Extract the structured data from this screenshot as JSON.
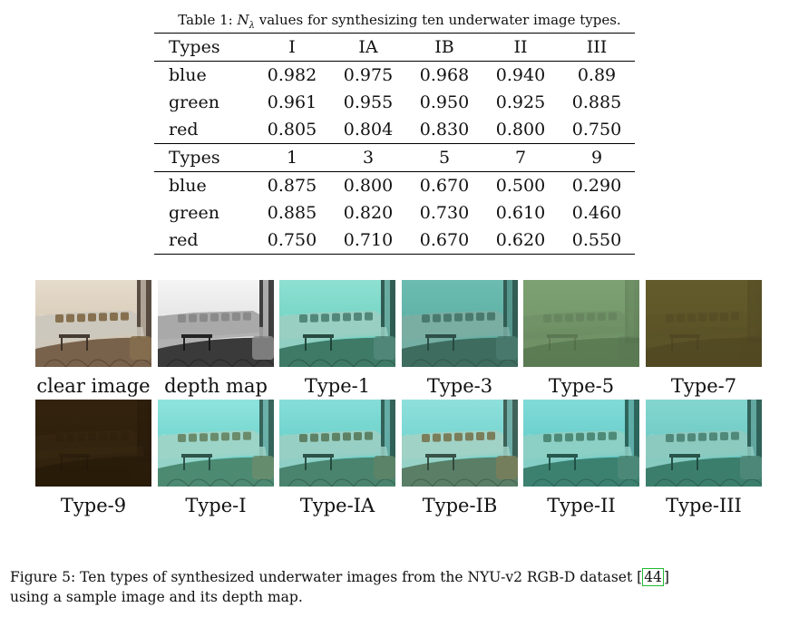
{
  "table": {
    "caption_prefix": "Table 1:",
    "caption_symbol": "N",
    "caption_subscript": "λ",
    "caption_rest": "values for synthesizing ten underwater image types.",
    "groups": [
      {
        "header": [
          "Types",
          "I",
          "IA",
          "IB",
          "II",
          "III"
        ],
        "rows": [
          [
            "blue",
            "0.982",
            "0.975",
            "0.968",
            "0.940",
            "0.89"
          ],
          [
            "green",
            "0.961",
            "0.955",
            "0.950",
            "0.925",
            "0.885"
          ],
          [
            "red",
            "0.805",
            "0.804",
            "0.830",
            "0.800",
            "0.750"
          ]
        ]
      },
      {
        "header": [
          "Types",
          "1",
          "3",
          "5",
          "7",
          "9"
        ],
        "rows": [
          [
            "blue",
            "0.875",
            "0.800",
            "0.670",
            "0.500",
            "0.290"
          ],
          [
            "green",
            "0.885",
            "0.820",
            "0.730",
            "0.610",
            "0.460"
          ],
          [
            "red",
            "0.750",
            "0.710",
            "0.670",
            "0.620",
            "0.550"
          ]
        ]
      }
    ]
  },
  "figure": {
    "images": [
      {
        "label": "clear image",
        "kind": "photo",
        "wall": "#cbbba5",
        "wall2": "#e6dccd",
        "sofa": "#cdc8bd",
        "pillow": "#86704f",
        "floor": "#79624b",
        "dark": "#372b20"
      },
      {
        "label": "depth map",
        "kind": "depth",
        "wall": "#d4d4d4",
        "wall2": "#f4f4f4",
        "sofa": "#a9a9a9",
        "pillow": "#8a8a8a",
        "floor": "#3a3a3a",
        "dark": "#141414"
      },
      {
        "label": "Type-1",
        "kind": "photo",
        "wall": "#5ccab8",
        "wall2": "#8ee0d2",
        "sofa": "#98cfc2",
        "pillow": "#52887a",
        "floor": "#3e7a66",
        "dark": "#1d3c34"
      },
      {
        "label": "Type-3",
        "kind": "photo",
        "wall": "#52a69b",
        "wall2": "#6cbcb1",
        "sofa": "#7aaea3",
        "pillow": "#4a7a6e",
        "floor": "#3e6c5e",
        "dark": "#26463e"
      },
      {
        "label": "Type-5",
        "kind": "faded",
        "wall": "#6f9165",
        "wall2": "#7da173",
        "sofa": "#6a8a62",
        "pillow": "#5a7652",
        "floor": "#4b6a44",
        "dark": "#3a5034"
      },
      {
        "label": "Type-7",
        "kind": "faded",
        "wall": "#5a5226",
        "wall2": "#645b2c",
        "sofa": "#5a5228",
        "pillow": "#4f4722",
        "floor": "#4a4220",
        "dark": "#3a3418"
      },
      {
        "label": "Type-9",
        "kind": "faded",
        "wall": "#2b1d0b",
        "wall2": "#33230e",
        "sofa": "#3a2a14",
        "pillow": "#2c1f0c",
        "floor": "#261a08",
        "dark": "#1a1105"
      },
      {
        "label": "Type-I",
        "kind": "photo",
        "wall": "#58cbc3",
        "wall2": "#8fe3dd",
        "sofa": "#9dd4c8",
        "pillow": "#6a8c6c",
        "floor": "#4d8a72",
        "dark": "#23463c"
      },
      {
        "label": "Type-IA",
        "kind": "photo",
        "wall": "#56c7c0",
        "wall2": "#86ddd8",
        "sofa": "#98cfc4",
        "pillow": "#5e8266",
        "floor": "#4a846e",
        "dark": "#21443a"
      },
      {
        "label": "Type-IB",
        "kind": "photo",
        "wall": "#5cc9c4",
        "wall2": "#8fe0dc",
        "sofa": "#a0d2c6",
        "pillow": "#7a7e5a",
        "floor": "#5a7e66",
        "dark": "#2e4438"
      },
      {
        "label": "Type-II",
        "kind": "photo",
        "wall": "#54c2c0",
        "wall2": "#80dbd8",
        "sofa": "#8ccfc4",
        "pillow": "#4e8a78",
        "floor": "#3c8070",
        "dark": "#1c4a40"
      },
      {
        "label": "Type-III",
        "kind": "photo",
        "wall": "#5cc0bc",
        "wall2": "#84d6d0",
        "sofa": "#8ccac0",
        "pillow": "#50887a",
        "floor": "#3c7e6c",
        "dark": "#1e463c"
      }
    ],
    "caption_prefix": "Figure 5:",
    "caption_text": "Ten types of synthesized underwater images from the NYU-v2 RGB-D dataset",
    "citation": "44",
    "caption_tail": "using a sample image and its depth map."
  }
}
